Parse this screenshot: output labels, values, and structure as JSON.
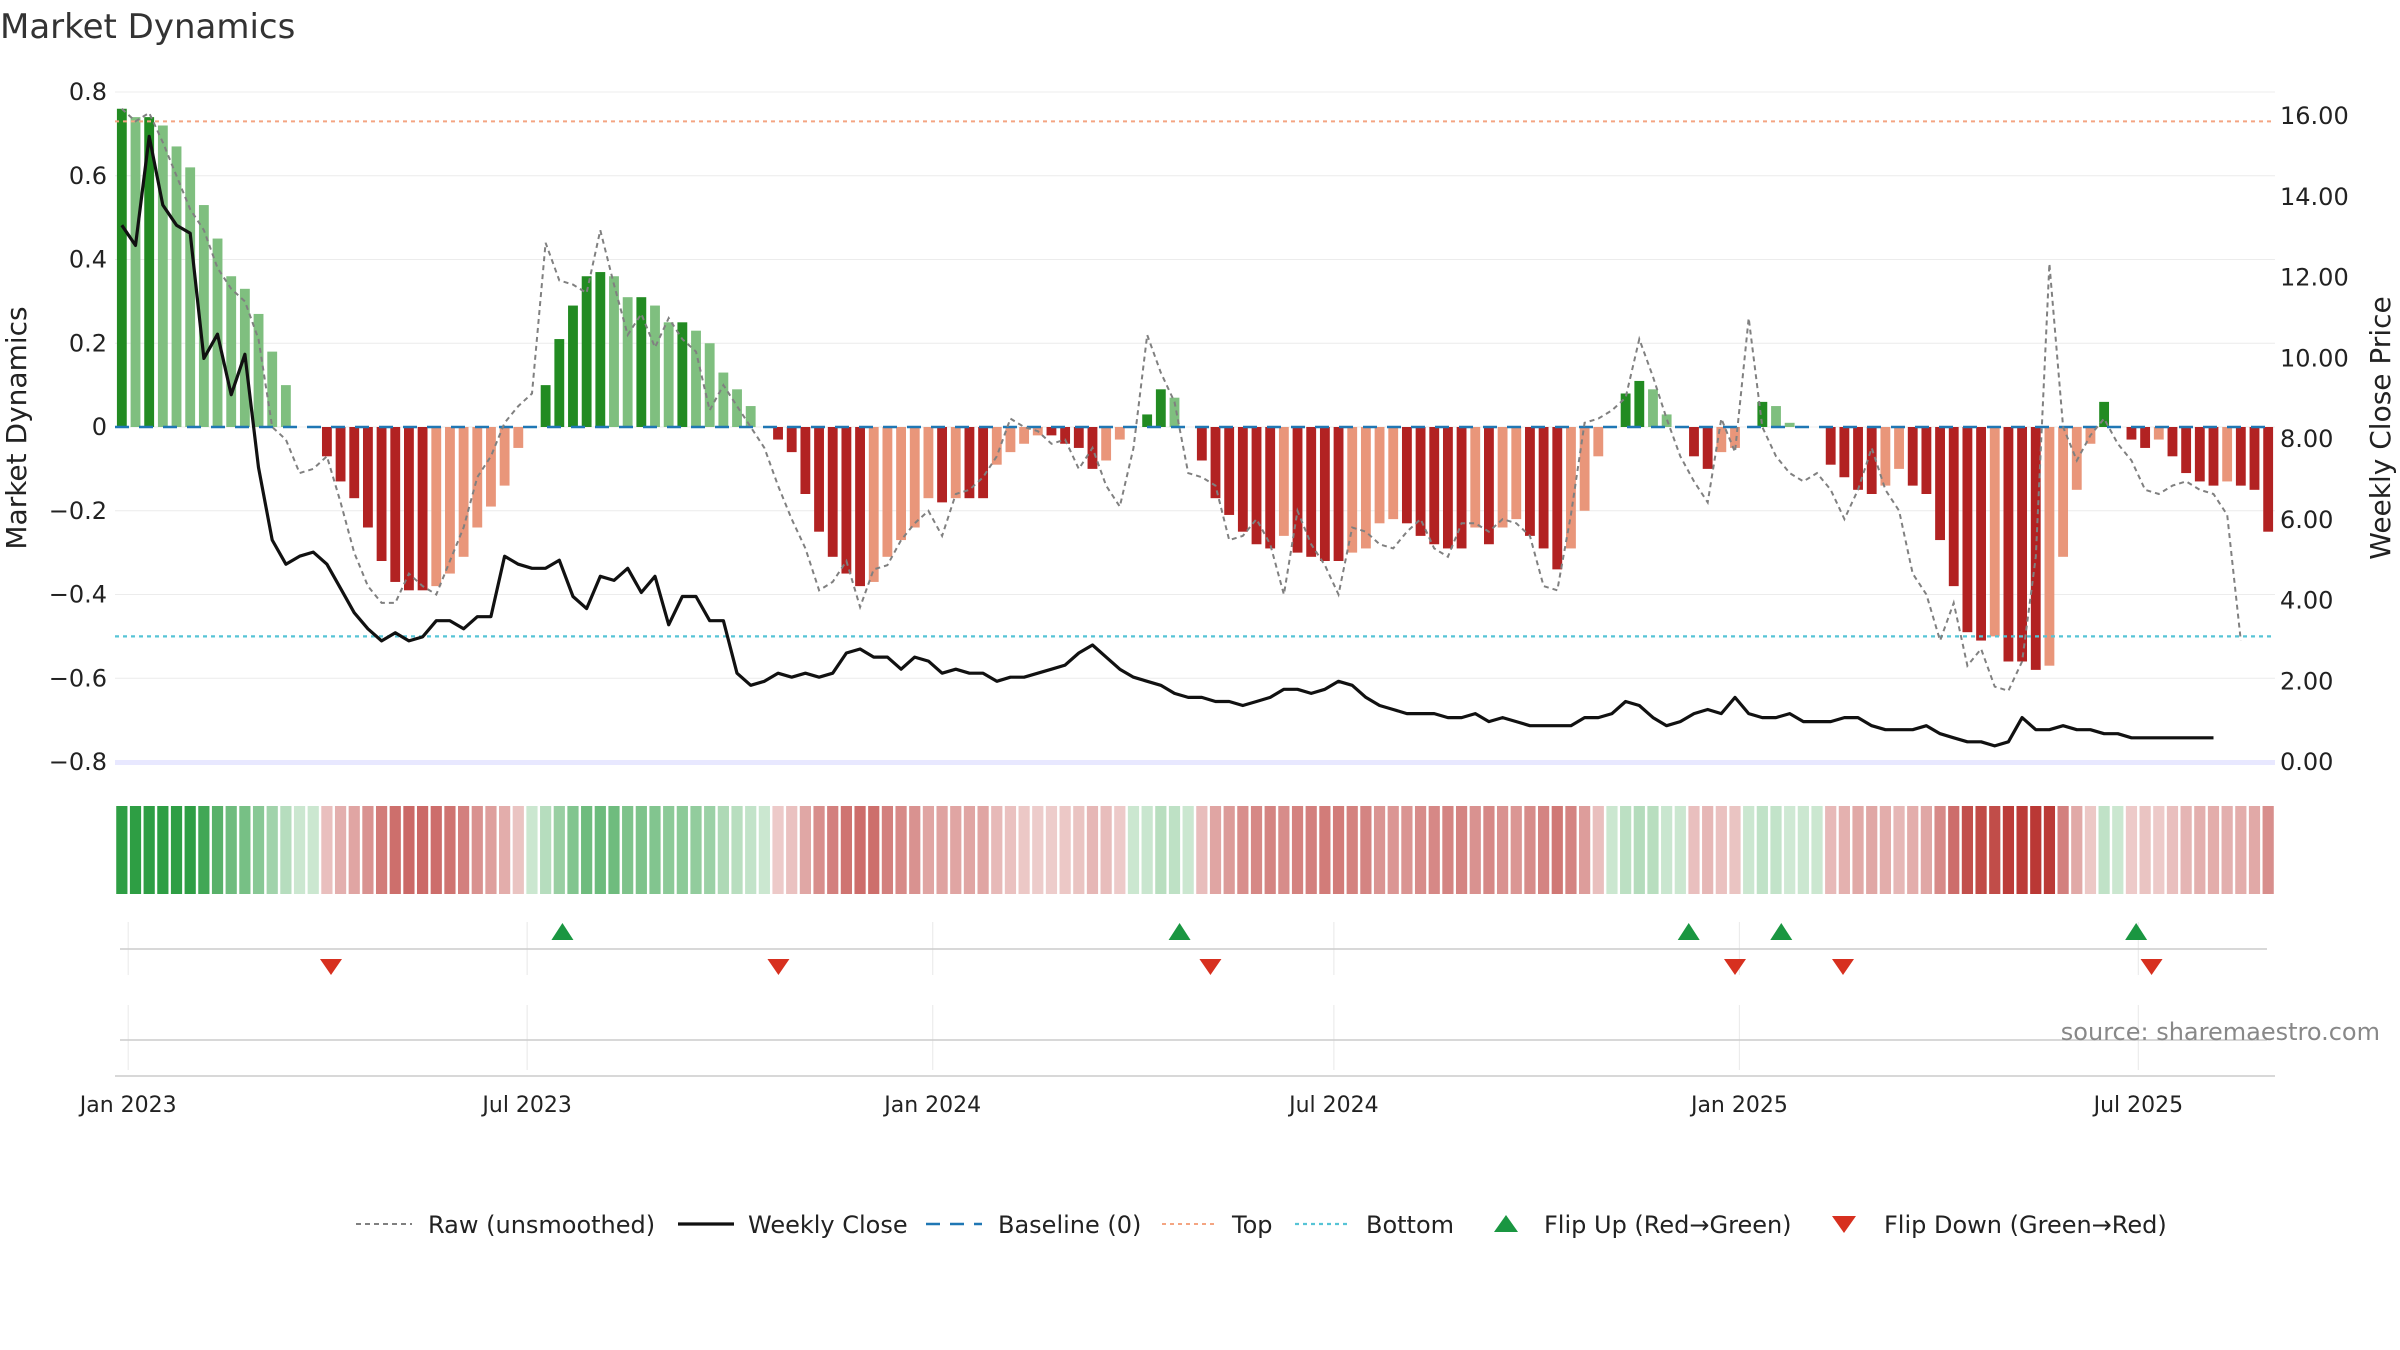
{
  "chart_data": {
    "type": "bar",
    "title": "Market Dynamics",
    "ylabel_left": "Market Dynamics",
    "ylabel_right": "Weekly Close Price",
    "source": "source: sharemaestro.com",
    "ylim_left": [
      -0.8,
      0.8
    ],
    "ylim_right": [
      0,
      16.6
    ],
    "yticks_left": [
      "0.8",
      "0.6",
      "0.4",
      "0.2",
      "0",
      "−0.2",
      "−0.4",
      "−0.6",
      "−0.8"
    ],
    "yticks_left_values": [
      0.8,
      0.6,
      0.4,
      0.2,
      0,
      -0.2,
      -0.4,
      -0.6,
      -0.8
    ],
    "yticks_right": [
      "16.00",
      "14.00",
      "12.00",
      "10.00",
      "8.00",
      "6.00",
      "4.00",
      "2.00",
      "0.00"
    ],
    "yticks_right_values": [
      16,
      14,
      12,
      10,
      8,
      6,
      4,
      2,
      0
    ],
    "x_start": "2022-12-26",
    "x_end": "2025-09-01",
    "xticks": [
      {
        "label": "Jan 2023",
        "date": "2023-01-01"
      },
      {
        "label": "Jul 2023",
        "date": "2023-07-01"
      },
      {
        "label": "Jan 2024",
        "date": "2024-01-01"
      },
      {
        "label": "Jul 2024",
        "date": "2024-07-01"
      },
      {
        "label": "Jan 2025",
        "date": "2025-01-01"
      },
      {
        "label": "Jul 2025",
        "date": "2025-07-01"
      }
    ],
    "top_level": 0.73,
    "bottom_level": -0.5,
    "baseline": 0,
    "grid": true,
    "legend_position": "bottom",
    "colors": {
      "strong_up": "#228b22",
      "weak_up": "#7fbf7f",
      "strong_down": "#b22222",
      "weak_down": "#e9967a",
      "raw": "#808080",
      "close": "#111111",
      "baseline": "#1f77b4",
      "top": "#f4a582",
      "bottom": "#56c4d6",
      "flip_up": "#1a9641",
      "flip_down": "#d7301f"
    },
    "smoothed": [
      0.76,
      0.74,
      0.74,
      0.72,
      0.67,
      0.62,
      0.53,
      0.45,
      0.36,
      0.33,
      0.27,
      0.18,
      0.1,
      0.0,
      0.0,
      -0.07,
      -0.13,
      -0.17,
      -0.24,
      -0.32,
      -0.37,
      -0.39,
      -0.39,
      -0.38,
      -0.35,
      -0.31,
      -0.24,
      -0.19,
      -0.14,
      -0.05,
      0.0,
      0.1,
      0.21,
      0.29,
      0.36,
      0.37,
      0.36,
      0.31,
      0.31,
      0.29,
      0.25,
      0.25,
      0.23,
      0.2,
      0.13,
      0.09,
      0.05,
      0.0,
      -0.03,
      -0.06,
      -0.16,
      -0.25,
      -0.31,
      -0.35,
      -0.38,
      -0.37,
      -0.31,
      -0.27,
      -0.24,
      -0.17,
      -0.18,
      -0.17,
      -0.17,
      -0.17,
      -0.09,
      -0.06,
      -0.04,
      -0.02,
      -0.02,
      -0.04,
      -0.05,
      -0.1,
      -0.08,
      -0.03,
      0.0,
      0.03,
      0.09,
      0.07,
      0.0,
      -0.08,
      -0.17,
      -0.21,
      -0.25,
      -0.28,
      -0.29,
      -0.26,
      -0.3,
      -0.31,
      -0.32,
      -0.32,
      -0.3,
      -0.29,
      -0.23,
      -0.22,
      -0.23,
      -0.26,
      -0.28,
      -0.29,
      -0.29,
      -0.24,
      -0.28,
      -0.24,
      -0.22,
      -0.26,
      -0.29,
      -0.34,
      -0.29,
      -0.2,
      -0.07,
      0.0,
      0.08,
      0.11,
      0.09,
      0.03,
      0.0,
      -0.07,
      -0.1,
      -0.06,
      -0.05,
      0.0,
      0.06,
      0.05,
      0.01,
      0.0,
      0.0,
      -0.09,
      -0.12,
      -0.15,
      -0.16,
      -0.14,
      -0.1,
      -0.14,
      -0.16,
      -0.27,
      -0.38,
      -0.49,
      -0.51,
      -0.5,
      -0.56,
      -0.56,
      -0.58,
      -0.57,
      -0.31,
      -0.15,
      -0.04,
      0.06,
      0.0,
      -0.03,
      -0.05,
      -0.03,
      -0.07,
      -0.11,
      -0.13,
      -0.14,
      -0.13,
      -0.14,
      -0.15,
      -0.25
    ],
    "raw": [
      0.76,
      0.73,
      0.75,
      0.68,
      0.6,
      0.52,
      0.47,
      0.38,
      0.33,
      0.3,
      0.21,
      0.0,
      -0.03,
      -0.11,
      -0.1,
      -0.07,
      -0.18,
      -0.3,
      -0.38,
      -0.42,
      -0.42,
      -0.35,
      -0.38,
      -0.4,
      -0.32,
      -0.24,
      -0.12,
      -0.07,
      0.01,
      0.05,
      0.08,
      0.44,
      0.35,
      0.34,
      0.32,
      0.47,
      0.34,
      0.22,
      0.27,
      0.19,
      0.26,
      0.21,
      0.18,
      0.04,
      0.1,
      0.05,
      0.0,
      -0.05,
      -0.14,
      -0.22,
      -0.29,
      -0.39,
      -0.37,
      -0.32,
      -0.43,
      -0.34,
      -0.33,
      -0.27,
      -0.23,
      -0.2,
      -0.26,
      -0.16,
      -0.15,
      -0.12,
      -0.07,
      0.02,
      0.0,
      -0.01,
      -0.04,
      -0.03,
      -0.1,
      -0.05,
      -0.14,
      -0.19,
      -0.05,
      0.22,
      0.13,
      0.06,
      -0.11,
      -0.12,
      -0.14,
      -0.27,
      -0.26,
      -0.22,
      -0.28,
      -0.4,
      -0.2,
      -0.28,
      -0.33,
      -0.4,
      -0.24,
      -0.25,
      -0.28,
      -0.29,
      -0.25,
      -0.22,
      -0.29,
      -0.31,
      -0.23,
      -0.23,
      -0.25,
      -0.22,
      -0.23,
      -0.26,
      -0.38,
      -0.39,
      -0.21,
      0.01,
      0.02,
      0.04,
      0.07,
      0.21,
      0.12,
      0.02,
      -0.07,
      -0.13,
      -0.18,
      0.02,
      -0.06,
      0.26,
      0.0,
      -0.07,
      -0.11,
      -0.13,
      -0.11,
      -0.15,
      -0.22,
      -0.15,
      -0.05,
      -0.15,
      -0.2,
      -0.35,
      -0.4,
      -0.51,
      -0.42,
      -0.57,
      -0.53,
      -0.62,
      -0.63,
      -0.56,
      -0.31,
      0.39,
      0.0,
      -0.08,
      -0.02,
      0.02,
      -0.04,
      -0.08,
      -0.15,
      -0.16,
      -0.14,
      -0.13,
      -0.15,
      -0.16,
      -0.21,
      -0.51
    ],
    "close": [
      13.3,
      12.8,
      15.5,
      13.8,
      13.3,
      13.1,
      10.0,
      10.6,
      9.1,
      10.1,
      7.3,
      5.5,
      4.9,
      5.1,
      5.2,
      4.9,
      4.3,
      3.7,
      3.3,
      3.0,
      3.2,
      3.0,
      3.1,
      3.5,
      3.5,
      3.3,
      3.6,
      3.6,
      5.1,
      4.9,
      4.8,
      4.8,
      5.0,
      4.1,
      3.8,
      4.6,
      4.5,
      4.8,
      4.2,
      4.6,
      3.4,
      4.1,
      4.1,
      3.5,
      3.5,
      2.2,
      1.9,
      2.0,
      2.2,
      2.1,
      2.2,
      2.1,
      2.2,
      2.7,
      2.8,
      2.6,
      2.6,
      2.3,
      2.6,
      2.5,
      2.2,
      2.3,
      2.2,
      2.2,
      2.0,
      2.1,
      2.1,
      2.2,
      2.3,
      2.4,
      2.7,
      2.9,
      2.6,
      2.3,
      2.1,
      2.0,
      1.9,
      1.7,
      1.6,
      1.6,
      1.5,
      1.5,
      1.4,
      1.5,
      1.6,
      1.8,
      1.8,
      1.7,
      1.8,
      2.0,
      1.9,
      1.6,
      1.4,
      1.3,
      1.2,
      1.2,
      1.2,
      1.1,
      1.1,
      1.2,
      1.0,
      1.1,
      1.0,
      0.9,
      0.9,
      0.9,
      0.9,
      1.1,
      1.1,
      1.2,
      1.5,
      1.4,
      1.1,
      0.9,
      1.0,
      1.2,
      1.3,
      1.2,
      1.6,
      1.2,
      1.1,
      1.1,
      1.2,
      1.0,
      1.0,
      1.0,
      1.1,
      1.1,
      0.9,
      0.8,
      0.8,
      0.8,
      0.9,
      0.7,
      0.6,
      0.5,
      0.5,
      0.4,
      0.5,
      1.1,
      0.8,
      0.8,
      0.9,
      0.8,
      0.8,
      0.7,
      0.7,
      0.6,
      0.6,
      0.6,
      0.6,
      0.6,
      0.6,
      0.6
    ],
    "flips": [
      {
        "type": "up",
        "date": "2023-07-17"
      },
      {
        "type": "down",
        "date": "2023-04-03"
      },
      {
        "type": "down",
        "date": "2023-10-23"
      },
      {
        "type": "up",
        "date": "2024-04-22"
      },
      {
        "type": "down",
        "date": "2024-05-06"
      },
      {
        "type": "up",
        "date": "2024-12-09"
      },
      {
        "type": "down",
        "date": "2024-12-30"
      },
      {
        "type": "up",
        "date": "2025-01-20"
      },
      {
        "type": "down",
        "date": "2025-02-17"
      },
      {
        "type": "up",
        "date": "2025-06-30"
      },
      {
        "type": "down",
        "date": "2025-07-07"
      }
    ],
    "legend": [
      {
        "key": "raw",
        "label": "Raw (unsmoothed)"
      },
      {
        "key": "close",
        "label": "Weekly Close"
      },
      {
        "key": "baseline",
        "label": "Baseline (0)"
      },
      {
        "key": "top",
        "label": "Top"
      },
      {
        "key": "bottom",
        "label": "Bottom"
      },
      {
        "key": "flip_up",
        "label": "Flip Up (Red→Green)"
      },
      {
        "key": "flip_down",
        "label": "Flip Down (Green→Red)"
      }
    ]
  }
}
